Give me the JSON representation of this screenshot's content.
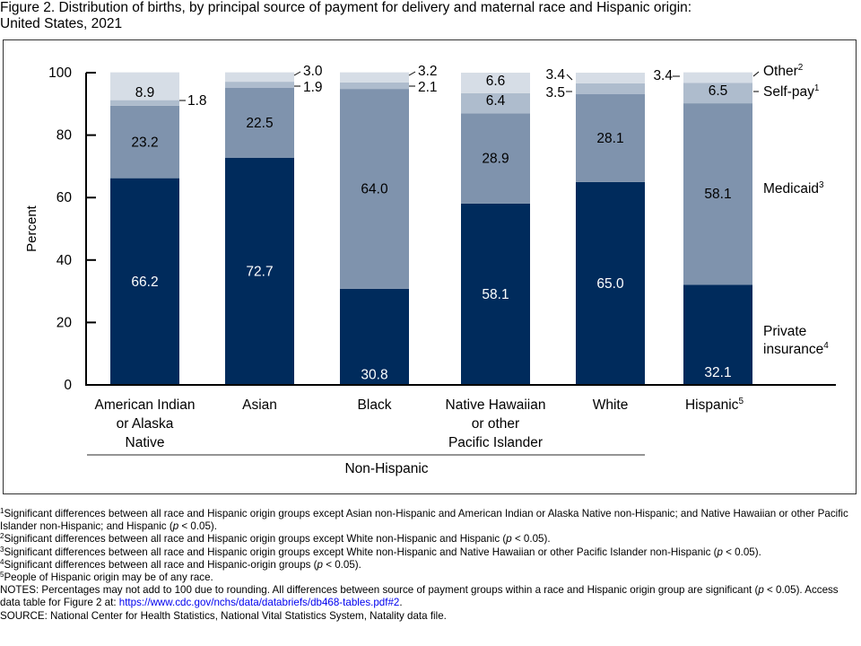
{
  "figure": {
    "title_line1": "Figure 2. Distribution of births, by principal source of payment for delivery and maternal race and Hispanic origin:",
    "title_line2": "United States, 2021"
  },
  "colors": {
    "private": "#002b5c",
    "medicaid": "#7f93ad",
    "selfpay": "#aebccd",
    "other": "#d6dde6",
    "link": "#0000ee"
  },
  "chart_data": {
    "type": "bar",
    "stacked": true,
    "title": "Figure 2. Distribution of births, by principal source of payment for delivery and maternal race and Hispanic origin: United States, 2021",
    "ylabel": "Percent",
    "xlabel": "",
    "ylim": [
      0,
      100
    ],
    "yticks": [
      "0",
      "20",
      "40",
      "60",
      "80",
      "100"
    ],
    "categories": [
      [
        "American Indian",
        "or Alaska",
        "Native"
      ],
      [
        "Asian"
      ],
      [
        "Black"
      ],
      [
        "Native Hawaiian",
        "or other",
        "Pacific Islander"
      ],
      [
        "White"
      ],
      [
        "Hispanic"
      ]
    ],
    "category_superscripts": [
      "",
      "",
      "",
      "",
      "",
      "5"
    ],
    "group_label": "Non-Hispanic",
    "series": [
      {
        "name": "Private insurance",
        "legend_line1": "Private",
        "legend_line2": "insurance",
        "sup": "4",
        "values": [
          66.2,
          72.7,
          30.8,
          58.1,
          65.0,
          32.1
        ],
        "labels": [
          "66.2",
          "72.7",
          "30.8",
          "58.1",
          "65.0",
          "32.1"
        ]
      },
      {
        "name": "Medicaid",
        "legend_line1": "Medicaid",
        "sup": "3",
        "values": [
          23.2,
          22.5,
          64.0,
          28.9,
          28.1,
          58.1
        ],
        "labels": [
          "23.2",
          "22.5",
          "64.0",
          "28.9",
          "28.1",
          "58.1"
        ]
      },
      {
        "name": "Self-pay",
        "legend_line1": "Self-pay",
        "sup": "1",
        "values": [
          1.8,
          1.9,
          2.1,
          6.4,
          3.5,
          6.5
        ],
        "labels": [
          "1.8",
          "1.9",
          "2.1",
          "6.4",
          "3.5",
          "6.5"
        ]
      },
      {
        "name": "Other",
        "legend_line1": "Other",
        "sup": "2",
        "values": [
          8.9,
          3.0,
          3.2,
          6.6,
          3.4,
          3.4
        ],
        "labels": [
          "8.9",
          "3.0",
          "3.2",
          "6.6",
          "3.4",
          "3.4"
        ]
      }
    ],
    "legend_placement": "right"
  },
  "footnotes": {
    "n1_sup": "1",
    "n1": "Significant differences between all race and Hispanic origin groups except Asian non-Hispanic and American Indian or Alaska Native non-Hispanic; and Native Hawaiian or other Pacific Islander non-Hispanic; and Hispanic (",
    "n1_p": "p",
    "n1_end": " < 0.05).",
    "n2_sup": "2",
    "n2": "Significant differences between all race and Hispanic origin groups except White non-Hispanic and Hispanic (",
    "n2_p": "p",
    "n2_end": " < 0.05).",
    "n3_sup": "3",
    "n3": "Significant differences between all race and Hispanic origin groups except White non-Hispanic and Native Hawaiian or other Pacific Islander non-Hispanic (",
    "n3_p": "p",
    "n3_end": " < 0.05).",
    "n4_sup": "4",
    "n4": "Significant differences between all race and Hispanic-origin groups (",
    "n4_p": "p",
    "n4_end": " < 0.05).",
    "n5_sup": "5",
    "n5": "People of Hispanic origin may be of any race.",
    "notes": "NOTES: Percentages may not add to 100 due to rounding. All differences between source of payment groups within a race and Hispanic origin group are significant (",
    "notes_p": "p",
    "notes_mid": " < 0.05). Access data table for Figure 2 at: ",
    "notes_link": "https://www.cdc.gov/nchs/data/databriefs/db468-tables.pdf#2",
    "notes_end": ".",
    "source": "SOURCE: National Center for Health Statistics, National Vital Statistics System, Natality data file."
  }
}
